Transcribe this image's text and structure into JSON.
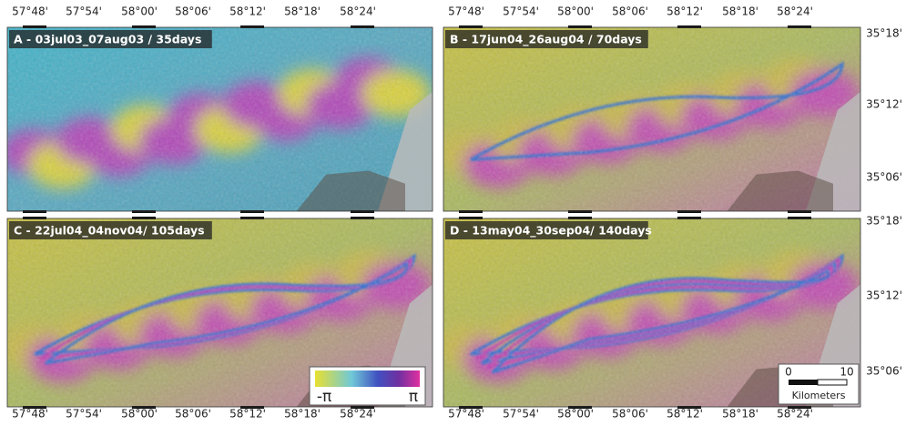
{
  "panels": [
    {
      "label": "A - 03jul03_07aug03 / 35days"
    },
    {
      "label": "B - 17jun04_26aug04 / 70days"
    },
    {
      "label": "C - 22jul04_04nov04/ 105days"
    },
    {
      "label": "D - 13may04_30sep04/ 140days"
    }
  ],
  "longitude_labels": [
    "57°48'",
    "57°54'",
    "58°00'",
    "58°06'",
    "58°12'",
    "58°18'",
    "58°24'"
  ],
  "latitude_labels": [
    "35°18'",
    "35°12'",
    "35°06'"
  ],
  "colorbar": {
    "min_label": "-π",
    "max_label": "π"
  },
  "scale_bar": {
    "start": "0",
    "end": "10",
    "unit": "Kilometers"
  }
}
